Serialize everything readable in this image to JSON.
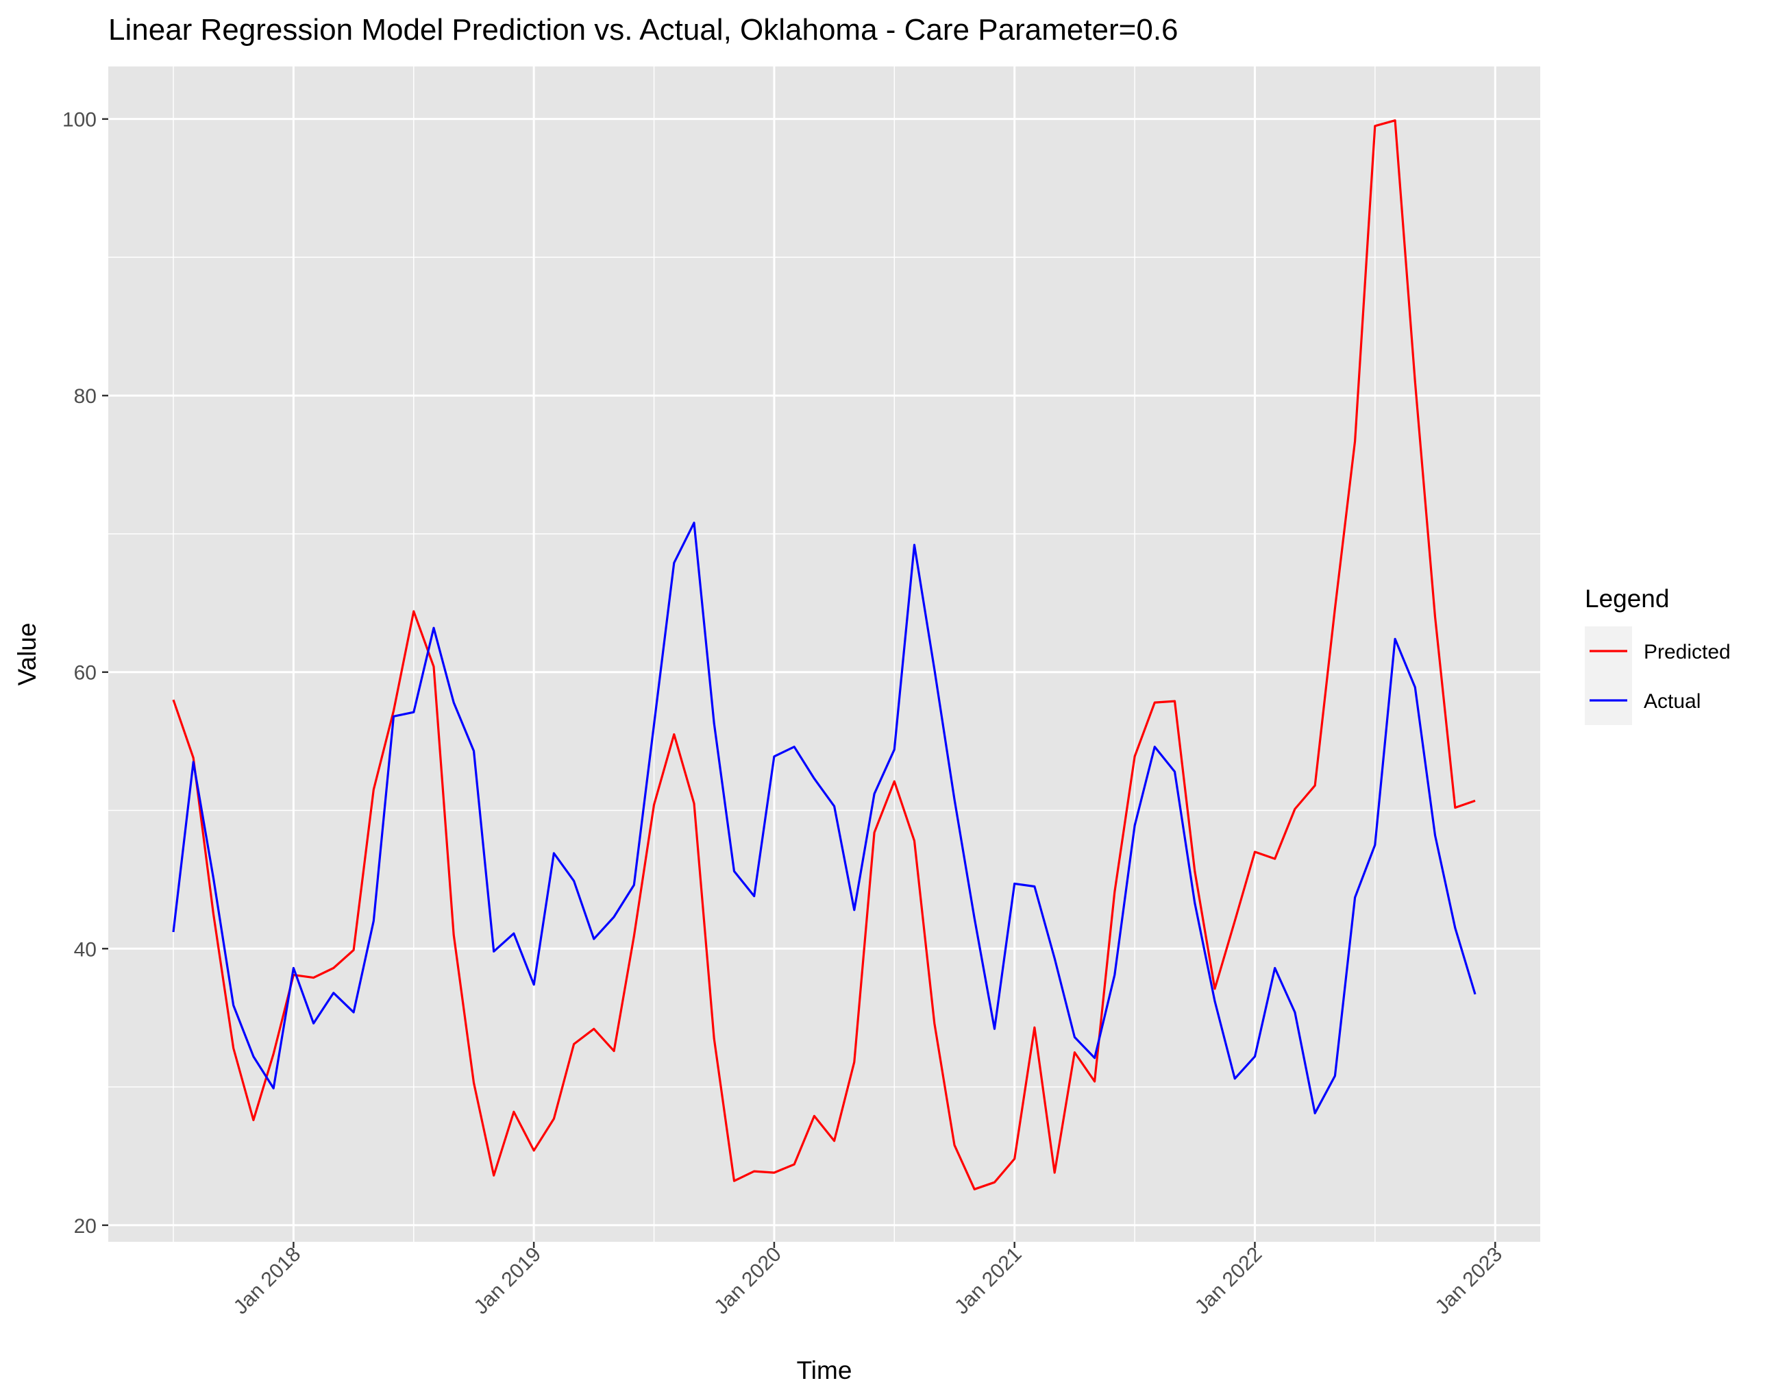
{
  "chart_data": {
    "type": "line",
    "title": "Linear Regression Model Prediction vs. Actual, Oklahoma - Care Parameter=0.6",
    "xlabel": "Time",
    "ylabel": "Value",
    "x_start": "2017-07",
    "x": [
      "2017-07",
      "2017-08",
      "2017-09",
      "2017-10",
      "2017-11",
      "2017-12",
      "2018-01",
      "2018-02",
      "2018-03",
      "2018-04",
      "2018-05",
      "2018-06",
      "2018-07",
      "2018-08",
      "2018-09",
      "2018-10",
      "2018-11",
      "2018-12",
      "2019-01",
      "2019-02",
      "2019-03",
      "2019-04",
      "2019-05",
      "2019-06",
      "2019-07",
      "2019-08",
      "2019-09",
      "2019-10",
      "2019-11",
      "2019-12",
      "2020-01",
      "2020-02",
      "2020-03",
      "2020-04",
      "2020-05",
      "2020-06",
      "2020-07",
      "2020-08",
      "2020-09",
      "2020-10",
      "2020-11",
      "2020-12",
      "2021-01",
      "2021-02",
      "2021-03",
      "2021-04",
      "2021-05",
      "2021-06",
      "2021-07",
      "2021-08",
      "2021-09",
      "2021-10",
      "2021-11",
      "2021-12",
      "2022-01",
      "2022-02",
      "2022-03",
      "2022-04",
      "2022-05",
      "2022-06",
      "2022-07",
      "2022-08",
      "2022-09",
      "2022-10",
      "2022-11",
      "2022-12"
    ],
    "series": [
      {
        "name": "Predicted",
        "color": "#ff0000",
        "values": [
          58,
          53.8,
          42.5,
          32.8,
          27.6,
          32.4,
          38.1,
          37.9,
          38.6,
          39.9,
          51.5,
          57.2,
          64.4,
          60.4,
          41,
          30.3,
          23.6,
          28.2,
          25.4,
          27.7,
          33.1,
          34.2,
          32.6,
          40.9,
          50.4,
          55.5,
          50.5,
          33.5,
          23.2,
          23.9,
          23.8,
          24.4,
          27.9,
          26.1,
          31.8,
          48.4,
          52.1,
          47.8,
          34.6,
          25.8,
          22.6,
          23.1,
          24.8,
          34.3,
          23.8,
          32.5,
          30.4,
          44.1,
          53.9,
          57.8,
          57.9,
          45.6,
          37.1,
          42,
          47,
          46.5,
          50.1,
          51.8,
          64.6,
          76.7,
          99.5,
          99.9,
          81,
          64,
          50.2,
          50.7
        ]
      },
      {
        "name": "Actual",
        "color": "#0000ff",
        "values": [
          41.2,
          53.5,
          45.1,
          35.9,
          32.2,
          29.9,
          38.6,
          34.6,
          36.8,
          35.4,
          42,
          56.8,
          57.1,
          63.2,
          57.8,
          54.3,
          39.8,
          41.1,
          37.4,
          46.9,
          44.9,
          40.7,
          42.3,
          44.6,
          56.2,
          67.9,
          70.8,
          56.3,
          45.6,
          43.8,
          53.9,
          54.6,
          52.3,
          50.3,
          42.8,
          51.2,
          54.4,
          69.2,
          60.2,
          50.8,
          42.2,
          34.2,
          44.7,
          44.5,
          39.3,
          33.6,
          32.1,
          38.1,
          48.9,
          54.6,
          52.8,
          43.3,
          36.2,
          30.6,
          32.2,
          38.6,
          35.4,
          28.1,
          30.8,
          43.7,
          47.5,
          62.4,
          58.9,
          48.2,
          41.5,
          36.7
        ]
      }
    ],
    "ylim": [
      18.8,
      103.8
    ],
    "yticks": [
      20,
      40,
      60,
      80,
      100
    ],
    "xticks": [
      {
        "date": "2018-01",
        "label": "Jan 2018"
      },
      {
        "date": "2019-01",
        "label": "Jan 2019"
      },
      {
        "date": "2020-01",
        "label": "Jan 2020"
      },
      {
        "date": "2021-01",
        "label": "Jan 2021"
      },
      {
        "date": "2022-01",
        "label": "Jan 2022"
      },
      {
        "date": "2023-01",
        "label": "Jan 2023"
      }
    ],
    "legend": {
      "title": "Legend",
      "position": "right"
    },
    "grid": true,
    "panel_background": "#e5e5e5",
    "grid_color": "#ffffff"
  }
}
